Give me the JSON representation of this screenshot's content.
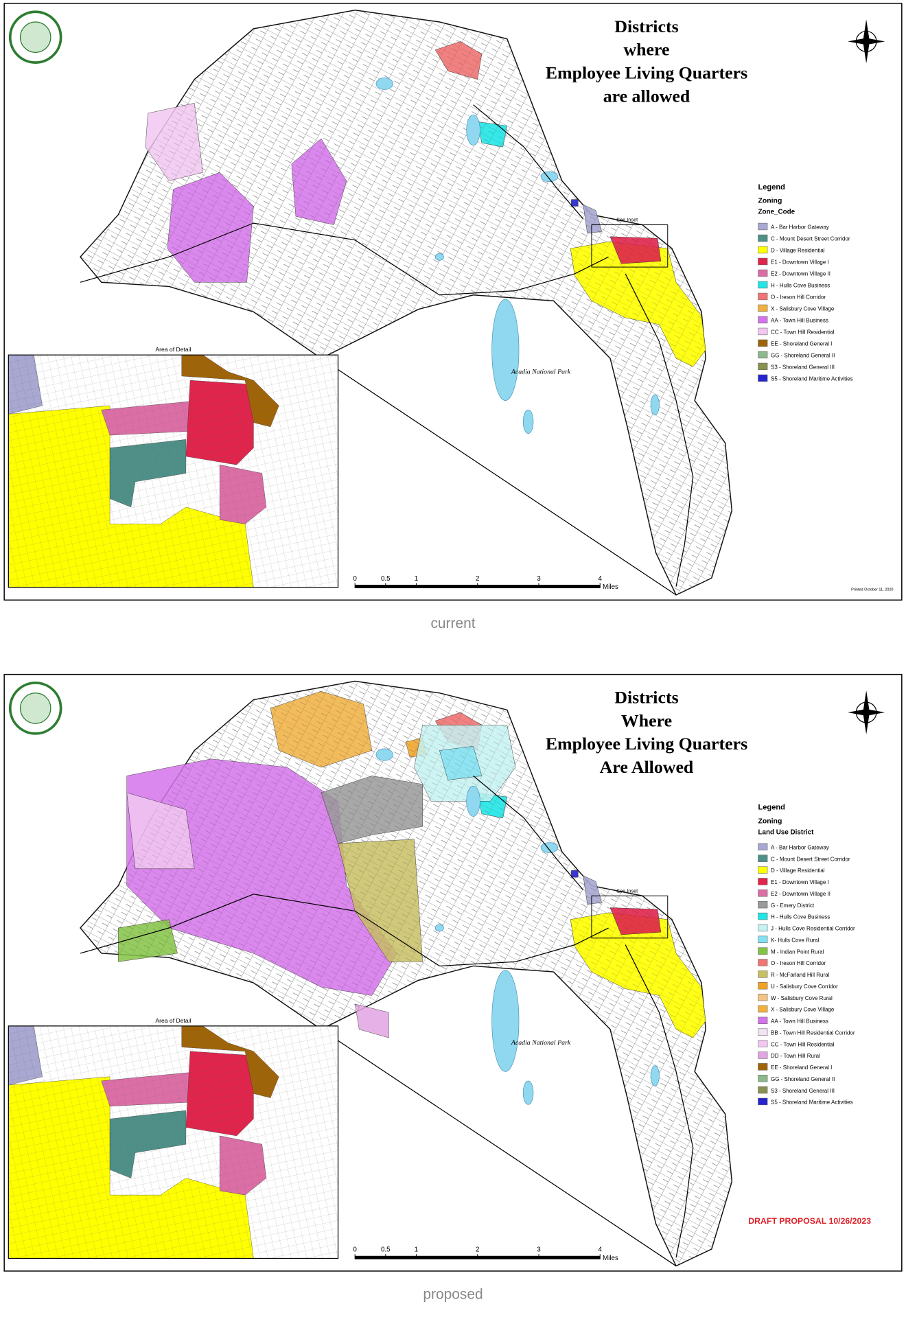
{
  "maps": [
    {
      "title_lines": [
        "Districts",
        "where",
        "Employee Living Quarters",
        "are allowed"
      ],
      "legend": {
        "title": "Legend",
        "subtitle": "Zoning",
        "field": "Zone_Code",
        "items": [
          {
            "label": "A - Bar Harbor Gateway",
            "color": "#a8a8d2"
          },
          {
            "label": "C - Mount Desert Street Corridor",
            "color": "#4e9088"
          },
          {
            "label": "D - Village Residential",
            "color": "#ffff00"
          },
          {
            "label": "E1 - Downtown Village I",
            "color": "#e0244c"
          },
          {
            "label": "E2 - Downtown Village II",
            "color": "#dc6ea6"
          },
          {
            "label": "H - Hulls Cove Business",
            "color": "#22e6e6"
          },
          {
            "label": "O - Ireson Hill Corridor",
            "color": "#f07474"
          },
          {
            "label": "X - Salisbury Cove Village",
            "color": "#f0b040"
          },
          {
            "label": "AA - Town Hill Business",
            "color": "#d474ea"
          },
          {
            "label": "CC - Town Hill Residential",
            "color": "#f2c8f2"
          },
          {
            "label": "EE - Shoreland General I",
            "color": "#a06408"
          },
          {
            "label": "GG - Shoreland General II",
            "color": "#8eb88e"
          },
          {
            "label": "S3 - Shoreland General III",
            "color": "#8a9050"
          },
          {
            "label": "S5 - Shoreland Maritime Activities",
            "color": "#2424d0"
          }
        ]
      },
      "inset_title": "Area of Detail",
      "inset_note": "See Inset",
      "park_label": "Acadia National Park",
      "scale": {
        "ticks": [
          0,
          0.5,
          1,
          2,
          3,
          4
        ],
        "unit": "Miles"
      },
      "footer": "Printed October 11, 2020",
      "caption": "current"
    },
    {
      "title_lines": [
        "Districts",
        "Where",
        "Employee Living Quarters",
        "Are Allowed"
      ],
      "legend": {
        "title": "Legend",
        "subtitle": "Zoning",
        "field": "Land Use District",
        "items": [
          {
            "label": "A - Bar Harbor Gateway",
            "color": "#a8a8d2"
          },
          {
            "label": "C - Mount Desert Street Corridor",
            "color": "#4e9088"
          },
          {
            "label": "D - Village Residential",
            "color": "#ffff00"
          },
          {
            "label": "E1 - Downtown Village I",
            "color": "#e0244c"
          },
          {
            "label": "E2 - Downtown Village II",
            "color": "#dc6ea6"
          },
          {
            "label": "G - Emery District",
            "color": "#9a9a9a"
          },
          {
            "label": "H - Hulls Cove Business",
            "color": "#22e6e6"
          },
          {
            "label": "J - Hulls Cove Residential Corridor",
            "color": "#c6f2f2"
          },
          {
            "label": "K- Hulls Cove Rural",
            "color": "#84e2f2"
          },
          {
            "label": "M - Indian Point Rural",
            "color": "#84c444"
          },
          {
            "label": "O - Ireson Hill Corridor",
            "color": "#f07474"
          },
          {
            "label": "R - McFarland Hill Rural",
            "color": "#c8c064"
          },
          {
            "label": "U - Salisbury Cove Corridor",
            "color": "#f0a224"
          },
          {
            "label": "W - Salisbury Cove Rural",
            "color": "#f2c486"
          },
          {
            "label": "X - Salisbury Cove Village",
            "color": "#f0b040"
          },
          {
            "label": "AA - Town Hill Business",
            "color": "#d474ea"
          },
          {
            "label": "BB - Town Hill Residential Corridor",
            "color": "#f2e2f2"
          },
          {
            "label": "CC - Town Hill Residential",
            "color": "#f2c8f2"
          },
          {
            "label": "DD - Town Hill Rural",
            "color": "#e2a4e2"
          },
          {
            "label": "EE - Shoreland General I",
            "color": "#a06408"
          },
          {
            "label": "GG - Shoreland General II",
            "color": "#8eb88e"
          },
          {
            "label": "S3 - Shoreland General III",
            "color": "#8a9050"
          },
          {
            "label": "S5 - Shoreland Maritime Activities",
            "color": "#2424d0"
          }
        ]
      },
      "inset_title": "Area of Detail",
      "inset_note": "See Inset",
      "park_label": "Acadia National Park",
      "scale": {
        "ticks": [
          0,
          0.5,
          1,
          2,
          3,
          4
        ],
        "unit": "Miles"
      },
      "draft_label": "DRAFT PROPOSAL 10/26/2023",
      "caption": "proposed"
    }
  ]
}
